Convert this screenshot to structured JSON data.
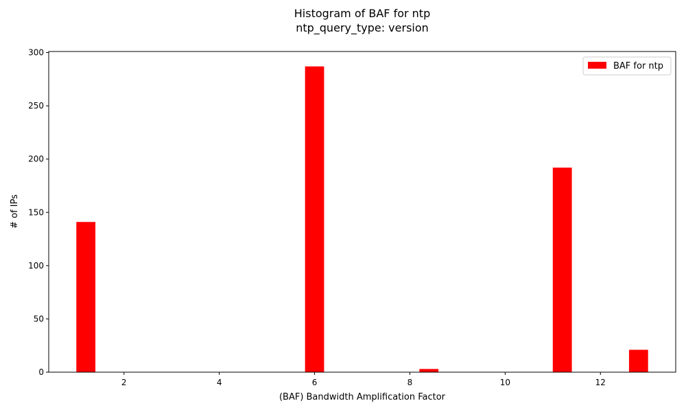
{
  "chart_data": {
    "type": "bar",
    "title": "Histogram of BAF for ntp",
    "subtitle": "ntp_query_type: version",
    "xlabel": "(BAF) Bandwidth Amplification Factor",
    "ylabel": "# of IPs",
    "xlim": [
      0.42,
      13.58
    ],
    "ylim": [
      0,
      301
    ],
    "xticks": [
      2,
      4,
      6,
      8,
      10,
      12
    ],
    "yticks": [
      0,
      50,
      100,
      150,
      200,
      250,
      300
    ],
    "grid": false,
    "legend_position": "top-right",
    "bar_color": "#ff0000",
    "series": [
      {
        "name": "BAF for ntp",
        "bins": [
          {
            "x0": 1.0,
            "x1": 1.4,
            "value": 141
          },
          {
            "x0": 5.8,
            "x1": 6.2,
            "value": 287
          },
          {
            "x0": 8.2,
            "x1": 8.6,
            "value": 3
          },
          {
            "x0": 11.0,
            "x1": 11.4,
            "value": 192
          },
          {
            "x0": 12.6,
            "x1": 13.0,
            "value": 21
          }
        ]
      }
    ]
  }
}
